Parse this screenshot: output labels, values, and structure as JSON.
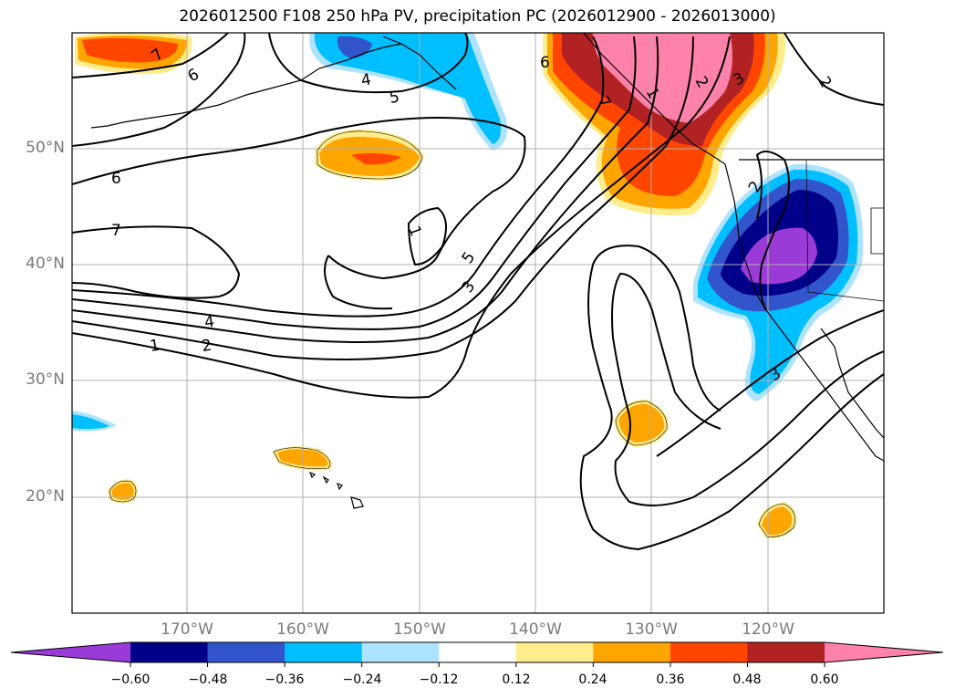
{
  "title": "2026012500 F108 250 hPa PV, precipitation PC (2026012900 - 2026013000)",
  "map": {
    "lat_labels": [
      "50°N",
      "40°N",
      "30°N",
      "20°N"
    ],
    "lon_labels": [
      "170°W",
      "160°W",
      "150°W",
      "140°W",
      "130°W",
      "120°W"
    ],
    "contour_labels": [
      "1",
      "2",
      "3",
      "4",
      "5",
      "6",
      "7",
      "1",
      "2",
      "3",
      "4",
      "5",
      "6",
      "7",
      "1",
      "2",
      "3",
      "6",
      "7",
      "2"
    ]
  },
  "colorbar": {
    "ticks": [
      "−0.60",
      "−0.48",
      "−0.36",
      "−0.24",
      "−0.12",
      "0.12",
      "0.24",
      "0.36",
      "0.48",
      "0.60"
    ],
    "colors": [
      "#9a3bd8",
      "#00008b",
      "#3355cc",
      "#00bfff",
      "#aee3ff",
      "#ffffff",
      "#ffec8b",
      "#ffa500",
      "#ff4500",
      "#b22222",
      "#ff82ab"
    ]
  }
}
